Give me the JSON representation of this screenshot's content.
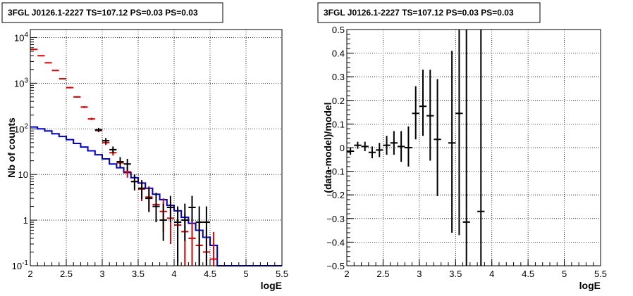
{
  "chart_data": [
    {
      "type": "scatter",
      "title": "3FGL J0126.1-2227 TS=107.12 PS=0.03 PS=0.03",
      "xlabel": "logE",
      "ylabel": "Nb of counts",
      "xlim": [
        2,
        5.5
      ],
      "ylim": [
        0.1,
        15000
      ],
      "yscale": "log",
      "grid": true,
      "xticks": [
        2,
        2.5,
        3,
        3.5,
        4,
        4.5,
        5,
        5.5
      ],
      "xticklabels": [
        "2",
        "2.5",
        "3",
        "3.5",
        "4",
        "4.5",
        "5",
        "5.5"
      ],
      "yticks": [
        0.1,
        1,
        10,
        100,
        1000,
        10000
      ],
      "yticklabels": [
        "10<sup>-1</sup>",
        "1",
        "10",
        "10<sup>2</sup>",
        "10<sup>3</sup>",
        "10<sup>4</sup>"
      ],
      "series": [
        {
          "kind": "step",
          "color": "#0000cc",
          "bin_edges": [
            2.0,
            2.1,
            2.2,
            2.3,
            2.4,
            2.5,
            2.6,
            2.7,
            2.8,
            2.9,
            3.0,
            3.1,
            3.2,
            3.3,
            3.4,
            3.5,
            3.6,
            3.7,
            3.8,
            3.9,
            4.0,
            4.1,
            4.2,
            4.3,
            4.4,
            4.5,
            4.6,
            5.5
          ],
          "values": [
            110,
            100,
            90,
            78,
            68,
            58,
            48,
            40,
            33,
            27,
            22,
            17,
            14,
            11,
            8.5,
            6.5,
            5.0,
            3.7,
            2.8,
            2.1,
            1.6,
            1.15,
            0.85,
            0.6,
            0.42,
            0.28,
            0.1
          ]
        },
        {
          "kind": "points",
          "color": "#dd0000",
          "x": [
            2.05,
            2.15,
            2.25,
            2.35,
            2.45,
            2.55,
            2.65,
            2.75,
            2.85,
            2.95,
            3.05,
            3.15,
            3.25,
            3.35,
            3.45,
            3.55,
            3.65,
            3.75,
            3.85,
            3.95,
            4.05,
            4.15,
            4.25,
            4.35,
            4.45,
            4.55
          ],
          "y": [
            5500,
            4000,
            2800,
            1900,
            1250,
            800,
            500,
            300,
            165,
            92,
            50,
            30,
            18,
            11.5,
            7,
            4.8,
            3.2,
            2.2,
            1.55,
            1.1,
            0.78,
            0.56,
            0.4,
            0.28,
            0.2,
            0.14
          ],
          "ylow": [
            5420,
            3930,
            2740,
            1850,
            1210,
            770,
            480,
            285,
            155,
            85,
            44,
            26,
            15,
            8.5,
            4.5,
            2.6,
            1.6,
            0.9,
            0.55,
            0.3,
            0.12,
            0.1,
            0.1,
            0.1,
            0.1,
            0.1
          ],
          "yhigh": [
            5580,
            4070,
            2860,
            1950,
            1290,
            830,
            520,
            315,
            175,
            100,
            56,
            34,
            22,
            15,
            10,
            7.5,
            5.5,
            4.0,
            3.0,
            2.3,
            1.8,
            1.4,
            1.1,
            0.9,
            0.7,
            0.55
          ]
        },
        {
          "kind": "points",
          "color": "#000000",
          "x": [
            2.95,
            3.05,
            3.15,
            3.25,
            3.35,
            3.45,
            3.55,
            3.65,
            3.75,
            3.85,
            3.95,
            4.05,
            4.15,
            4.25,
            4.35,
            4.45
          ],
          "y": [
            95,
            55,
            35,
            19,
            17,
            7,
            5,
            3,
            2,
            1.0,
            1.9,
            0.9,
            1.0,
            1.9,
            0.9,
            0.9
          ],
          "ylow": [
            85,
            47,
            29,
            14,
            12,
            4.5,
            2.9,
            1.5,
            0.9,
            0.35,
            0.9,
            0.1,
            0.35,
            0.9,
            0.1,
            0.1
          ],
          "yhigh": [
            105,
            63,
            41,
            24,
            22,
            10,
            7.5,
            5.2,
            3.9,
            2.3,
            3.4,
            2.0,
            2.3,
            3.4,
            2.0,
            2.0
          ]
        }
      ]
    },
    {
      "type": "scatter",
      "title": "3FGL J0126.1-2227 TS=107.12 PS=0.03 PS=0.03",
      "xlabel": "logE",
      "ylabel": "(data-model)/model",
      "xlim": [
        2,
        5.5
      ],
      "ylim": [
        -0.5,
        0.5
      ],
      "grid": true,
      "xticks": [
        2,
        2.5,
        3,
        3.5,
        4,
        4.5,
        5,
        5.5
      ],
      "xticklabels": [
        "2",
        "2.5",
        "3",
        "3.5",
        "4",
        "4.5",
        "5",
        "5.5"
      ],
      "yticks": [
        -0.5,
        -0.4,
        -0.3,
        -0.2,
        -0.1,
        0,
        0.1,
        0.2,
        0.3,
        0.4,
        0.5
      ],
      "yticklabels": [
        "−0.5",
        "−0.4",
        "−0.3",
        "−0.2",
        "−0.1",
        "0",
        "0.1",
        "0.2",
        "0.3",
        "0.4",
        "0.5"
      ],
      "series": [
        {
          "kind": "points",
          "color": "#000000",
          "x": [
            2.05,
            2.15,
            2.25,
            2.35,
            2.45,
            2.55,
            2.65,
            2.75,
            2.85,
            2.95,
            3.05,
            3.15,
            3.25,
            3.45,
            3.55,
            3.65,
            3.85
          ],
          "y": [
            -0.015,
            0.01,
            0.005,
            -0.02,
            -0.01,
            0.01,
            0.02,
            0.005,
            0.0,
            0.145,
            0.175,
            0.135,
            0.035,
            0.02,
            0.145,
            -0.315,
            -0.27
          ],
          "ylow": [
            -0.03,
            -0.005,
            -0.015,
            -0.045,
            -0.04,
            -0.03,
            -0.03,
            -0.06,
            -0.08,
            0.035,
            0.05,
            -0.055,
            -0.205,
            -0.36,
            -0.37,
            -0.5,
            -0.5
          ],
          "yhigh": [
            0.0,
            0.025,
            0.025,
            0.005,
            0.02,
            0.05,
            0.07,
            0.07,
            0.09,
            0.26,
            0.33,
            0.33,
            0.29,
            0.41,
            0.5,
            0.5,
            0.5
          ]
        }
      ]
    }
  ]
}
